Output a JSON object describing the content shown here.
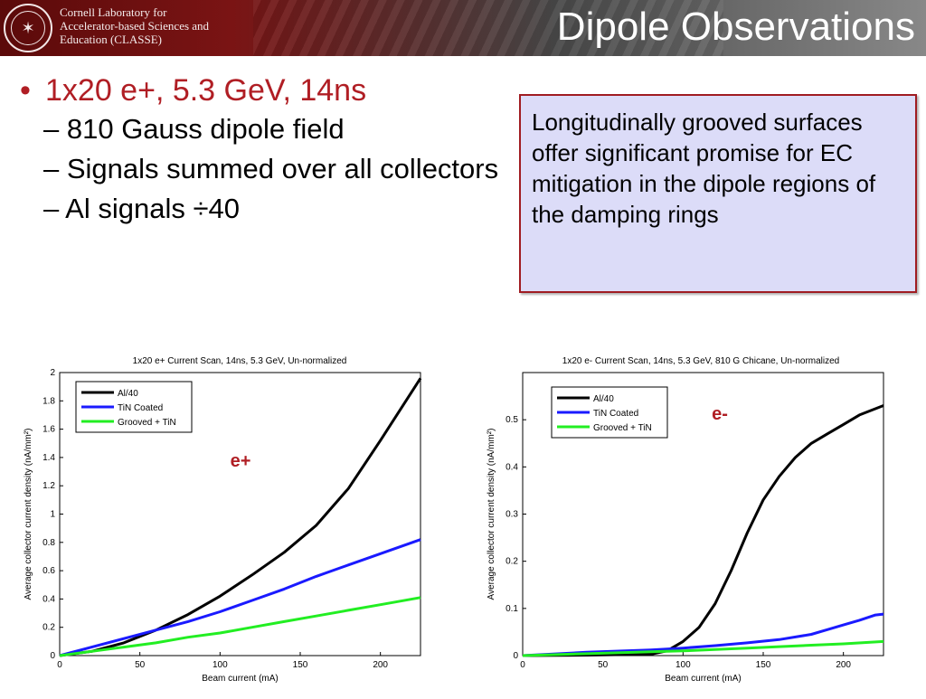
{
  "header": {
    "org_lines": [
      "Cornell Laboratory for",
      "Accelerator-based Sciences and",
      "Education (CLASSE)"
    ],
    "title": "Dipole Observations",
    "seal_icon": "cornell-seal-icon"
  },
  "bullets": {
    "main": "1x20 e+, 5.3 GeV, 14ns",
    "subs": [
      "810 Gauss dipole field",
      "Signals summed over all collectors",
      "Al signals ÷40"
    ]
  },
  "callout": {
    "text": "Longitudinally grooved surfaces offer significant promise for EC mitigation in the dipole regions of the damping rings"
  },
  "colors": {
    "accent": "#b01e24",
    "callout_bg": "#dcdcf8",
    "al": "#000000",
    "tin": "#1a1aff",
    "grooved": "#22ee22"
  },
  "chart_data": [
    {
      "type": "line",
      "title": "1x20 e+ Current Scan, 14ns, 5.3 GeV, Un-normalized",
      "xlabel": "Beam current (mA)",
      "ylabel": "Average collector current density (nA/mm²)",
      "xlim": [
        0,
        225
      ],
      "ylim": [
        0,
        2
      ],
      "xticks": [
        0,
        50,
        100,
        150,
        200
      ],
      "yticks": [
        0,
        0.2,
        0.4,
        0.6,
        0.8,
        1,
        1.2,
        1.4,
        1.6,
        1.8,
        2
      ],
      "annotation": "e+",
      "legend_position": "top-left",
      "series": [
        {
          "name": "Al/40",
          "color": "#000000",
          "x": [
            0,
            20,
            40,
            60,
            80,
            100,
            120,
            140,
            160,
            180,
            200,
            225
          ],
          "y": [
            0,
            0.03,
            0.09,
            0.18,
            0.29,
            0.42,
            0.57,
            0.73,
            0.92,
            1.18,
            1.52,
            1.96
          ]
        },
        {
          "name": "TiN Coated",
          "color": "#1a1aff",
          "x": [
            0,
            20,
            40,
            60,
            80,
            100,
            120,
            140,
            160,
            180,
            200,
            225
          ],
          "y": [
            0,
            0.06,
            0.12,
            0.18,
            0.24,
            0.31,
            0.39,
            0.47,
            0.56,
            0.64,
            0.72,
            0.82
          ]
        },
        {
          "name": "Grooved + TiN",
          "color": "#22ee22",
          "x": [
            0,
            20,
            40,
            60,
            80,
            100,
            120,
            140,
            160,
            180,
            200,
            225
          ],
          "y": [
            0,
            0.03,
            0.06,
            0.09,
            0.13,
            0.16,
            0.2,
            0.24,
            0.28,
            0.32,
            0.36,
            0.41
          ]
        }
      ]
    },
    {
      "type": "line",
      "title": "1x20 e- Current Scan, 14ns, 5.3 GeV, 810 G Chicane, Un-normalized",
      "xlabel": "Beam current (mA)",
      "ylabel": "Average collector current density (nA/mm²)",
      "xlim": [
        0,
        225
      ],
      "ylim": [
        0,
        0.6
      ],
      "xticks": [
        0,
        50,
        100,
        150,
        200
      ],
      "yticks": [
        0,
        0.1,
        0.2,
        0.3,
        0.4,
        0.5
      ],
      "annotation": "e-",
      "legend_position": "top-left",
      "series": [
        {
          "name": "Al/40",
          "color": "#000000",
          "x": [
            0,
            40,
            80,
            90,
            100,
            110,
            120,
            130,
            140,
            150,
            160,
            170,
            180,
            190,
            200,
            210,
            225
          ],
          "y": [
            0,
            0.001,
            0.003,
            0.01,
            0.03,
            0.06,
            0.11,
            0.18,
            0.26,
            0.33,
            0.38,
            0.42,
            0.45,
            0.47,
            0.49,
            0.51,
            0.53
          ]
        },
        {
          "name": "TiN Coated",
          "color": "#1a1aff",
          "x": [
            0,
            40,
            80,
            100,
            120,
            140,
            160,
            180,
            190,
            200,
            210,
            220,
            225
          ],
          "y": [
            0,
            0.007,
            0.012,
            0.016,
            0.021,
            0.027,
            0.034,
            0.045,
            0.055,
            0.065,
            0.075,
            0.086,
            0.088
          ]
        },
        {
          "name": "Grooved + TiN",
          "color": "#22ee22",
          "x": [
            0,
            40,
            80,
            100,
            120,
            140,
            160,
            180,
            200,
            225
          ],
          "y": [
            0,
            0.004,
            0.008,
            0.01,
            0.013,
            0.016,
            0.019,
            0.022,
            0.025,
            0.03
          ]
        }
      ]
    }
  ]
}
